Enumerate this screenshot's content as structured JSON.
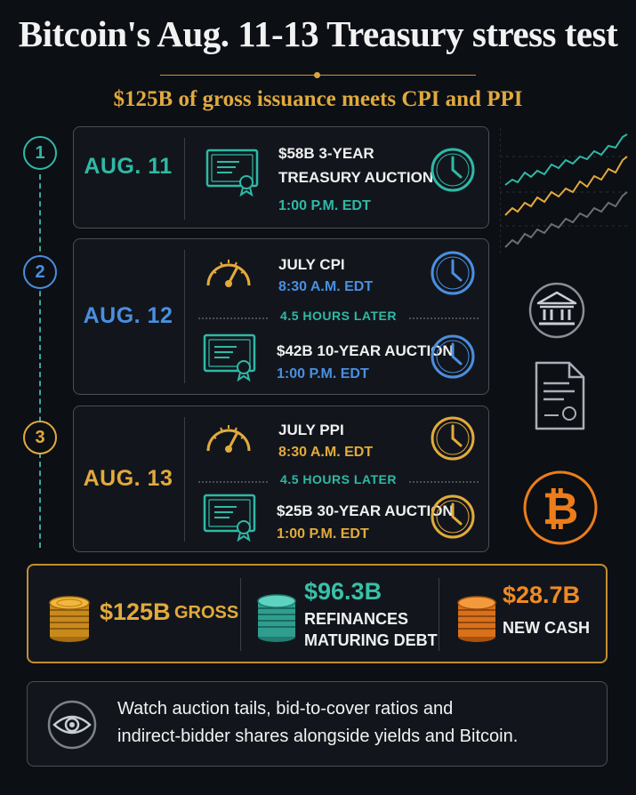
{
  "header": {
    "title": "Bitcoin's Aug. 11-13 Treasury stress test",
    "subtitle": "$125B of gross issuance meets CPI and PPI"
  },
  "timeline": [
    {
      "step": "1",
      "date": "AUG. 11",
      "color": "#2fb9a6",
      "events": [
        {
          "icon": "certificate-icon",
          "line1": "$58B 3-YEAR",
          "line2": "TREASURY AUCTION",
          "time": "1:00 P.M. EDT",
          "time_icon": "clock-icon"
        }
      ]
    },
    {
      "step": "2",
      "date": "AUG. 12",
      "color": "#4a8fe0",
      "gap_label": "4.5 HOURS LATER",
      "events": [
        {
          "icon": "gauge-icon",
          "label": "JULY CPI",
          "time": "8:30 A.M. EDT",
          "time_icon": "clock-icon"
        },
        {
          "icon": "certificate-icon",
          "label": "$42B 10-YEAR AUCTION",
          "time": "1:00 P.M. EDT",
          "time_icon": "clock-icon"
        }
      ]
    },
    {
      "step": "3",
      "date": "AUG. 13",
      "color": "#e3aa3c",
      "gap_label": "4.5 HOURS LATER",
      "events": [
        {
          "icon": "gauge-icon",
          "label": "JULY PPI",
          "time": "8:30 A.M. EDT",
          "time_icon": "clock-icon"
        },
        {
          "icon": "certificate-icon",
          "label": "$25B 30-YEAR AUCTION",
          "time": "1:00 P.M. EDT",
          "time_icon": "clock-icon"
        }
      ]
    }
  ],
  "side_icons": [
    "yield-lines-chart-icon",
    "bank-icon",
    "document-icon",
    "bitcoin-icon"
  ],
  "totals": [
    {
      "icon": "gold-coins-icon",
      "amount": "$125B",
      "label": "GROSS",
      "color": "#e3aa3c"
    },
    {
      "icon": "teal-coins-icon",
      "amount": "$96.3B",
      "label_line1": "REFINANCES",
      "label_line2": "MATURING DEBT",
      "color": "#39c0a8"
    },
    {
      "icon": "orange-coins-icon",
      "amount": "$28.7B",
      "label": "NEW CASH",
      "color": "#f08a24"
    }
  ],
  "note": {
    "icon": "eye-icon",
    "text_line1": "Watch auction tails, bid-to-cover ratios and",
    "text_line2": "indirect-bidder shares alongside yields and Bitcoin."
  }
}
